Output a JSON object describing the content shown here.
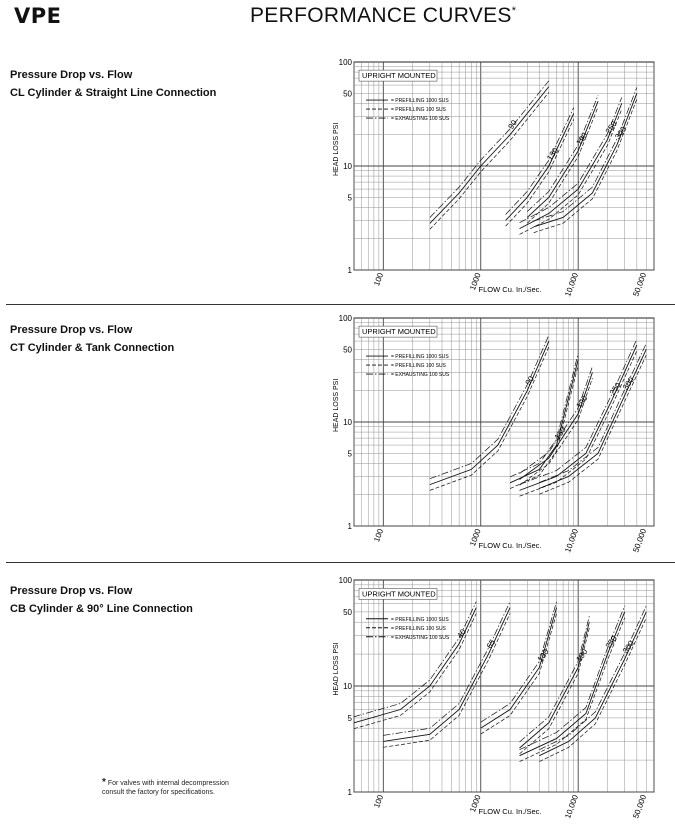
{
  "header": {
    "brand": "VPE",
    "title": "PERFORMANCE CURVES",
    "title_mark": "*"
  },
  "sections": [
    {
      "title_line1": "Pressure Drop vs. Flow",
      "title_line2": "CL Cylinder & Straight Line Connection"
    },
    {
      "title_line1": "Pressure Drop vs. Flow",
      "title_line2": "CT Cylinder & Tank Connection"
    },
    {
      "title_line1": "Pressure Drop vs. Flow",
      "title_line2": "CB Cylinder & 90° Line Connection"
    }
  ],
  "footnote": {
    "mark": "*",
    "line1": "For valves with internal decompression",
    "line2": "consult the factory for specifications."
  },
  "chart_data": [
    {
      "type": "line",
      "xscale": "log",
      "yscale": "log",
      "xlim": [
        50,
        60000
      ],
      "ylim": [
        1,
        100
      ],
      "xlabel": "FLOW Cu. In./Sec.",
      "ylabel": "HEAD LOSS PSI",
      "x_ticks": [
        "100",
        "1000",
        "10,000",
        "50,000"
      ],
      "y_ticks": [
        "100",
        "50",
        "10",
        "5",
        "1"
      ],
      "annotation": "UPRIGHT MOUNTED",
      "legend_position": "top-left",
      "legend": [
        "= PREFILLING 1000 SUS",
        "= PREFILLING 100 SUS",
        "= EXHAUSTING 100 SUS"
      ],
      "sizes": [
        {
          "label": "90",
          "x": [
            300,
            600,
            1000,
            2000,
            5000
          ],
          "y": [
            2.8,
            5.5,
            10,
            20,
            58
          ]
        },
        {
          "label": "130",
          "x": [
            1800,
            3000,
            5000,
            9000
          ],
          "y": [
            3,
            5,
            10,
            32
          ]
        },
        {
          "label": "190",
          "x": [
            3000,
            5000,
            10000,
            16000
          ],
          "y": [
            3.2,
            5,
            14,
            42
          ]
        },
        {
          "label": "250",
          "x": [
            2500,
            5000,
            10000,
            20000,
            28000
          ],
          "y": [
            2.5,
            3.5,
            6,
            18,
            40
          ]
        },
        {
          "label": "300",
          "x": [
            3500,
            7000,
            14000,
            25000,
            40000
          ],
          "y": [
            2.6,
            3.2,
            5.5,
            16,
            50
          ]
        }
      ]
    },
    {
      "type": "line",
      "xscale": "log",
      "yscale": "log",
      "xlim": [
        50,
        60000
      ],
      "ylim": [
        1,
        100
      ],
      "xlabel": "FLOW Cu. In./Sec.",
      "ylabel": "HEAD LOSS PSI",
      "x_ticks": [
        "100",
        "1000",
        "10,000",
        "50,000"
      ],
      "y_ticks": [
        "100",
        "50",
        "10",
        "5",
        "1"
      ],
      "annotation": "UPRIGHT MOUNTED",
      "legend_position": "top-left",
      "legend": [
        "= PREFILLING 1000 SUS",
        "= PREFILLING 100 SUS",
        "= EXHAUSTING 100 SUS"
      ],
      "sizes": [
        {
          "label": "90",
          "x": [
            300,
            800,
            1500,
            3000,
            5000
          ],
          "y": [
            2.5,
            3.5,
            6,
            20,
            60
          ]
        },
        {
          "label": "130",
          "x": [
            2000,
            4000,
            6000,
            10000
          ],
          "y": [
            2.6,
            3.5,
            6,
            40
          ]
        },
        {
          "label": "190",
          "x": [
            2500,
            5000,
            10000,
            14000
          ],
          "y": [
            2.8,
            4.5,
            12,
            30
          ]
        },
        {
          "label": "250",
          "x": [
            2500,
            6000,
            12000,
            22000,
            40000
          ],
          "y": [
            2.2,
            3,
            5,
            16,
            55
          ]
        },
        {
          "label": "300",
          "x": [
            4000,
            8000,
            16000,
            30000,
            50000
          ],
          "y": [
            2.3,
            3,
            5,
            18,
            50
          ]
        }
      ]
    },
    {
      "type": "line",
      "xscale": "log",
      "yscale": "log",
      "xlim": [
        50,
        60000
      ],
      "ylim": [
        1,
        100
      ],
      "xlabel": "FLOW Cu. In./Sec.",
      "ylabel": "HEAD LOSS PSI",
      "x_ticks": [
        "100",
        "1000",
        "10,000",
        "50,000"
      ],
      "y_ticks": [
        "100",
        "50",
        "10",
        "5",
        "1"
      ],
      "annotation": "UPRIGHT MOUNTED",
      "legend_position": "top-left",
      "legend": [
        "= PREFILLING 1000 SUS",
        "= PREFILLING 100 SUS",
        "= EXHAUSTING 100 SUS"
      ],
      "sizes": [
        {
          "label": "40",
          "x": [
            50,
            150,
            300,
            600,
            900
          ],
          "y": [
            4.5,
            6,
            10,
            25,
            55
          ]
        },
        {
          "label": "65",
          "x": [
            100,
            300,
            600,
            1200,
            2000
          ],
          "y": [
            3,
            3.5,
            6,
            20,
            55
          ]
        },
        {
          "label": "130",
          "x": [
            1000,
            2000,
            4000,
            6000
          ],
          "y": [
            4,
            6,
            15,
            55
          ]
        },
        {
          "label": "190",
          "x": [
            2500,
            5000,
            10000,
            13000
          ],
          "y": [
            2.6,
            4.5,
            15,
            40
          ]
        },
        {
          "label": "250",
          "x": [
            2500,
            6000,
            12000,
            20000,
            30000
          ],
          "y": [
            2.2,
            3.2,
            5.5,
            20,
            50
          ]
        },
        {
          "label": "300",
          "x": [
            4000,
            8000,
            15000,
            30000,
            50000
          ],
          "y": [
            2.2,
            3,
            5,
            18,
            50
          ]
        }
      ]
    }
  ]
}
